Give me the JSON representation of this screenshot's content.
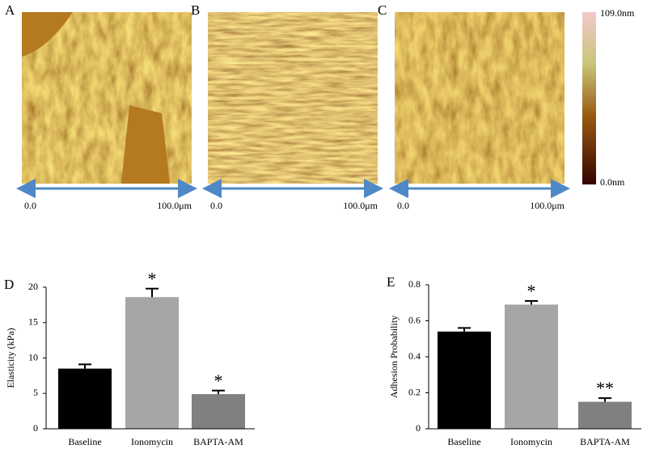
{
  "images": {
    "panels": [
      {
        "label": "A",
        "scale_start": "0.0",
        "scale_end": "100.0μm"
      },
      {
        "label": "B",
        "scale_start": "0.0",
        "scale_end": "100.0μm"
      },
      {
        "label": "C",
        "scale_start": "0.0",
        "scale_end": "100.0μm"
      }
    ],
    "colorbar": {
      "max": "109.0nm",
      "min": "0.0nm"
    }
  },
  "chart_data": [
    {
      "type": "bar",
      "panel_label": "D",
      "ylabel": "Elasticity (kPa)",
      "categories": [
        "Baseline",
        "Ionomycin",
        "BAPTA-AM"
      ],
      "values": [
        8.5,
        18.6,
        4.9
      ],
      "errors": [
        0.6,
        1.2,
        0.5
      ],
      "annotations": [
        null,
        "*",
        "*"
      ],
      "colors": [
        "#000000",
        "#a6a6a6",
        "#808080"
      ],
      "ylim": [
        0,
        20
      ],
      "yticks": [
        0,
        5,
        10,
        15,
        20
      ]
    },
    {
      "type": "bar",
      "panel_label": "E",
      "ylabel": "Adhesion Probability",
      "categories": [
        "Baseline",
        "Ionomycin",
        "BAPTA-AM"
      ],
      "values": [
        0.54,
        0.69,
        0.15
      ],
      "errors": [
        0.02,
        0.02,
        0.02
      ],
      "annotations": [
        null,
        "*",
        "**"
      ],
      "colors": [
        "#000000",
        "#a6a6a6",
        "#808080"
      ],
      "ylim": [
        0,
        0.8
      ],
      "yticks": [
        0,
        0.2,
        0.4,
        0.6,
        0.8
      ]
    }
  ]
}
